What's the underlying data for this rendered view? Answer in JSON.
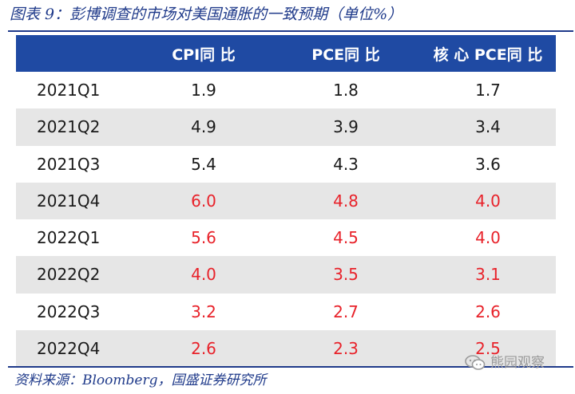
{
  "caption": "图表 9：彭博调查的市场对美国通胀的一致预期（单位%）",
  "table": {
    "headers": [
      "",
      "CPI同 比",
      "PCE同 比",
      "核 心 PCE同 比"
    ],
    "rows": [
      {
        "quarter": "2021Q1",
        "cpi": "1.9",
        "pce": "1.8",
        "core_pce": "1.7",
        "highlight": false
      },
      {
        "quarter": "2021Q2",
        "cpi": "4.9",
        "pce": "3.9",
        "core_pce": "3.4",
        "highlight": false
      },
      {
        "quarter": "2021Q3",
        "cpi": "5.4",
        "pce": "4.3",
        "core_pce": "3.6",
        "highlight": false
      },
      {
        "quarter": "2021Q4",
        "cpi": "6.0",
        "pce": "4.8",
        "core_pce": "4.0",
        "highlight": true
      },
      {
        "quarter": "2022Q1",
        "cpi": "5.6",
        "pce": "4.5",
        "core_pce": "4.0",
        "highlight": true
      },
      {
        "quarter": "2022Q2",
        "cpi": "4.0",
        "pce": "3.5",
        "core_pce": "3.1",
        "highlight": true
      },
      {
        "quarter": "2022Q3",
        "cpi": "3.2",
        "pce": "2.7",
        "core_pce": "2.6",
        "highlight": true
      },
      {
        "quarter": "2022Q4",
        "cpi": "2.6",
        "pce": "2.3",
        "core_pce": "2.5",
        "highlight": true
      }
    ]
  },
  "source": "资料来源：Bloomberg，国盛证券研究所",
  "watermark": "熊园观察",
  "colors": {
    "header_bg": "#1f4aa3",
    "accent_blue": "#1f3a8a",
    "forecast_red": "#e8222a",
    "stripe_gray": "#e6e6e6"
  }
}
